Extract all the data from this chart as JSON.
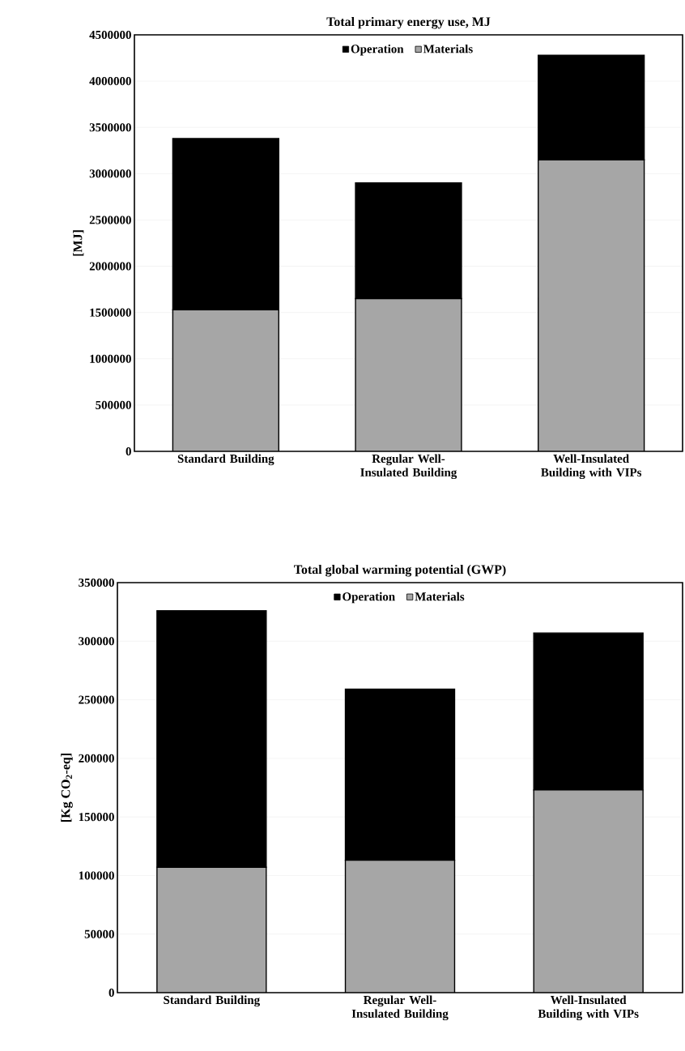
{
  "chart_data": [
    {
      "type": "bar",
      "title": "Total primary energy use, MJ",
      "ylabel": "[MJ]",
      "categories": [
        "Standard Building",
        "Regular Well-Insulated Building",
        "Well-Insulated Building with VIPs"
      ],
      "stacked": true,
      "series": [
        {
          "name": "Materials",
          "color": "#a6a6a6",
          "values": [
            1530000,
            1650000,
            3150000
          ]
        },
        {
          "name": "Operation",
          "color": "#000000",
          "values": [
            1850000,
            1250000,
            1130000
          ]
        }
      ],
      "ylim": [
        0,
        4500000
      ],
      "yticks": [
        0,
        500000,
        1000000,
        1500000,
        2000000,
        2500000,
        3000000,
        3500000,
        4000000,
        4500000
      ],
      "grid": "y",
      "legend": "top"
    },
    {
      "type": "bar",
      "title": "Total global warming potential (GWP)",
      "ylabel": "[Kg CO$_{2}$-eq]",
      "categories": [
        "Standard Building",
        "Regular Well-Insulated Building",
        "Well-Insulated Building with VIPs"
      ],
      "stacked": true,
      "series": [
        {
          "name": "Materials",
          "color": "#a6a6a6",
          "values": [
            107000,
            113000,
            173000
          ]
        },
        {
          "name": "Operation",
          "color": "#000000",
          "values": [
            219000,
            146000,
            134000
          ]
        }
      ],
      "ylim": [
        0,
        350000
      ],
      "yticks": [
        0,
        50000,
        100000,
        150000,
        200000,
        250000,
        300000,
        350000
      ],
      "grid": "y",
      "legend": "top"
    }
  ]
}
